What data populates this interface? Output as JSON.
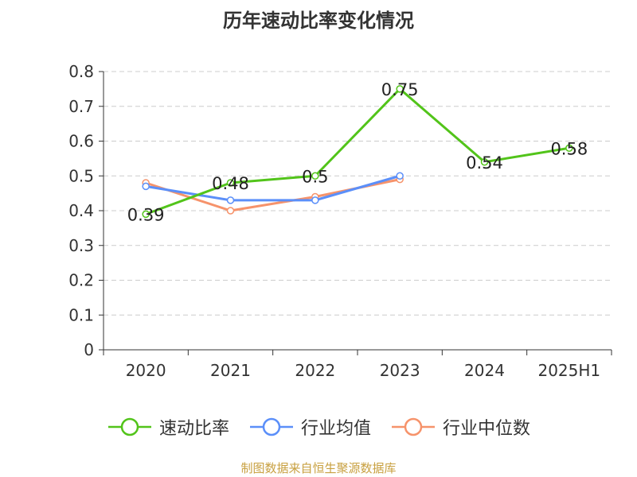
{
  "title": "历年速动比率变化情况",
  "source_note": "制图数据来自恒生聚源数据库",
  "colors": {
    "axis": "#333333",
    "grid": "#cccccc",
    "text": "#333333"
  },
  "chart_data": {
    "type": "line",
    "title": "历年速动比率变化情况",
    "categories": [
      "2020",
      "2021",
      "2022",
      "2023",
      "2024",
      "2025H1"
    ],
    "ylim": [
      0,
      0.8
    ],
    "yticks": [
      "0",
      "0.1",
      "0.2",
      "0.3",
      "0.4",
      "0.5",
      "0.6",
      "0.7",
      "0.8"
    ],
    "grid": true,
    "legend_position": "bottom",
    "series": [
      {
        "name": "速动比率",
        "color": "#52c41a",
        "values": [
          0.39,
          0.48,
          0.5,
          0.75,
          0.54,
          0.58
        ],
        "labels": [
          "0.39",
          "0.48",
          "0.5",
          "0.75",
          "0.54",
          "0.58"
        ]
      },
      {
        "name": "行业均值",
        "color": "#5b8ff9",
        "values": [
          0.47,
          0.43,
          0.43,
          0.5,
          null,
          null
        ]
      },
      {
        "name": "行业中位数",
        "color": "#f6936b",
        "values": [
          0.48,
          0.4,
          0.44,
          0.49,
          null,
          null
        ]
      }
    ]
  }
}
